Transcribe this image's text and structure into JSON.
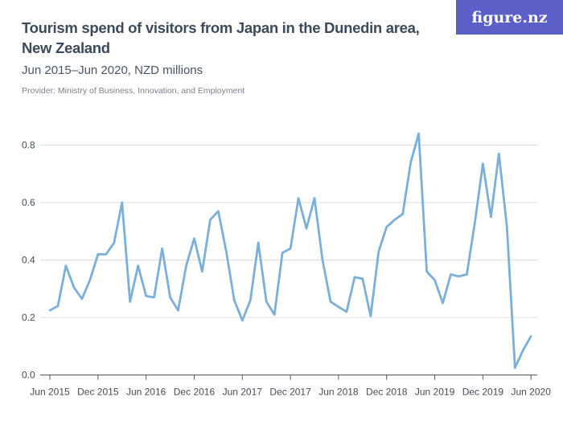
{
  "title": "Tourism spend of visitors from Japan in the Dunedin area, New Zealand",
  "subtitle": "Jun 2015–Jun 2020, NZD millions",
  "provider": "Provider: Ministry of Business, Innovation, and Employment",
  "logo": "figure.nz",
  "colors": {
    "line": "#7aafdc",
    "logo_bg": "#5b5fc7",
    "grid": "#dddddd"
  },
  "chart_data": {
    "type": "line",
    "title": "Tourism spend of visitors from Japan in the Dunedin area, New Zealand",
    "subtitle": "Jun 2015–Jun 2020, NZD millions",
    "x_start": "Jun 2015",
    "x_end": "Jun 2020",
    "frequency": "monthly",
    "x_ticks": [
      "Jun 2015",
      "Dec 2015",
      "Jun 2016",
      "Dec 2016",
      "Jun 2017",
      "Dec 2017",
      "Jun 2018",
      "Dec 2018",
      "Jun 2019",
      "Dec 2019",
      "Jun 2020"
    ],
    "y_ticks": [
      "0.0",
      "0.2",
      "0.4",
      "0.6",
      "0.8"
    ],
    "ylim": [
      0,
      0.85
    ],
    "grid": true,
    "values": [
      0.225,
      0.24,
      0.38,
      0.305,
      0.265,
      0.33,
      0.42,
      0.42,
      0.46,
      0.6,
      0.255,
      0.38,
      0.275,
      0.27,
      0.44,
      0.27,
      0.225,
      0.38,
      0.475,
      0.36,
      0.54,
      0.57,
      0.43,
      0.26,
      0.19,
      0.26,
      0.46,
      0.255,
      0.21,
      0.425,
      0.44,
      0.615,
      0.51,
      0.615,
      0.4,
      0.255,
      0.237,
      0.22,
      0.34,
      0.335,
      0.205,
      0.43,
      0.515,
      0.54,
      0.56,
      0.74,
      0.84,
      0.36,
      0.33,
      0.25,
      0.35,
      0.343,
      0.35,
      0.53,
      0.735,
      0.55,
      0.77,
      0.515,
      0.025,
      0.085,
      0.135
    ]
  }
}
